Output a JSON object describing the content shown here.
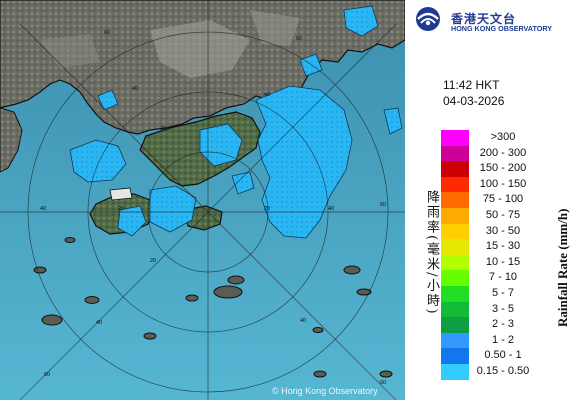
{
  "header": {
    "logo_text_zh": "香港天文台",
    "logo_text_en": "HONG KONG OBSERVATORY"
  },
  "timestamp": {
    "time": "11:42 HKT",
    "date": "04-03-2026"
  },
  "legend": {
    "title_zh": "降雨率(毫米/小時)",
    "title_en": "Rainfall Rate (mm/h)",
    "items": [
      {
        "label": ">300",
        "color": "#ff00ff"
      },
      {
        "label": "200 - 300",
        "color": "#cc0099"
      },
      {
        "label": "150 - 200",
        "color": "#cc0000"
      },
      {
        "label": "100 - 150",
        "color": "#ff2a00"
      },
      {
        "label": "75 - 100",
        "color": "#ff6a00"
      },
      {
        "label": "50 - 75",
        "color": "#ffaa00"
      },
      {
        "label": "30 - 50",
        "color": "#ffd000"
      },
      {
        "label": "15 - 30",
        "color": "#e6e600"
      },
      {
        "label": "10 - 15",
        "color": "#b3ff00"
      },
      {
        "label": "7 - 10",
        "color": "#66ff00"
      },
      {
        "label": "5 - 7",
        "color": "#22dd22"
      },
      {
        "label": "3 - 5",
        "color": "#11bb33"
      },
      {
        "label": "2 - 3",
        "color": "#0e9e44"
      },
      {
        "label": "1 - 2",
        "color": "#3399ff"
      },
      {
        "label": "0.50 - 1",
        "color": "#1177ee"
      },
      {
        "label": "0.15 - 0.50",
        "color": "#33ccff"
      }
    ]
  },
  "map": {
    "range_ring_labels": [
      "60",
      "40",
      "20",
      "40",
      "60",
      "40",
      "20",
      "20",
      "40",
      "20",
      "40",
      "60",
      "40",
      "60",
      "60"
    ],
    "copyright": "© Hong Kong Observatory",
    "colors": {
      "sea": "#3d95b3",
      "land": "#5f6258",
      "rain": "#2bb8f3",
      "coast": "#101010"
    }
  }
}
